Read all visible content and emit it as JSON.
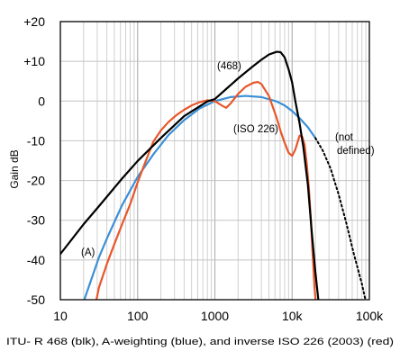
{
  "chart_data": {
    "type": "line",
    "ylabel": "Gain dB",
    "x_scale": "log",
    "xlim": [
      10,
      100000
    ],
    "ylim": [
      -50,
      20
    ],
    "grid": true,
    "x_ticks": [
      {
        "value": 10,
        "label": "10"
      },
      {
        "value": 100,
        "label": "100"
      },
      {
        "value": 1000,
        "label": "1000"
      },
      {
        "value": 10000,
        "label": "10k"
      },
      {
        "value": 100000,
        "label": "100k"
      }
    ],
    "y_ticks": [
      {
        "value": 20,
        "label": "+20"
      },
      {
        "value": 10,
        "label": "+10"
      },
      {
        "value": 0,
        "label": "0"
      },
      {
        "value": -10,
        "label": "-10"
      },
      {
        "value": -20,
        "label": "-20"
      },
      {
        "value": -30,
        "label": "-30"
      },
      {
        "value": -40,
        "label": "-40"
      },
      {
        "value": -50,
        "label": "-50"
      }
    ],
    "series": [
      {
        "key": "itu468",
        "color": "#000000",
        "points": [
          [
            10,
            -38.5
          ],
          [
            20,
            -31
          ],
          [
            31.5,
            -26.5
          ],
          [
            63,
            -19.5
          ],
          [
            100,
            -15.1
          ],
          [
            200,
            -9.3
          ],
          [
            400,
            -3.8
          ],
          [
            800,
            -0.1
          ],
          [
            1000,
            0.5
          ],
          [
            2000,
            5.7
          ],
          [
            3000,
            8.5
          ],
          [
            4000,
            10.4
          ],
          [
            5000,
            11.7
          ],
          [
            6300,
            12.4
          ],
          [
            7100,
            12.3
          ],
          [
            8000,
            11.0
          ],
          [
            9000,
            8.0
          ],
          [
            10000,
            4.7
          ],
          [
            11000,
            0.0
          ],
          [
            12500,
            -5.6
          ],
          [
            14000,
            -11.7
          ],
          [
            16000,
            -21.1
          ],
          [
            18000,
            -33.2
          ],
          [
            20000,
            -43.0
          ],
          [
            22400,
            -52
          ]
        ]
      },
      {
        "key": "a_weighting",
        "color": "#3b8fd6",
        "points": [
          [
            18,
            -52
          ],
          [
            20,
            -50.5
          ],
          [
            31.5,
            -39.4
          ],
          [
            40,
            -34.6
          ],
          [
            63,
            -26.2
          ],
          [
            100,
            -19.1
          ],
          [
            160,
            -13.4
          ],
          [
            250,
            -8.6
          ],
          [
            400,
            -4.8
          ],
          [
            630,
            -1.9
          ],
          [
            1000,
            0
          ],
          [
            1600,
            1.0
          ],
          [
            2500,
            1.3
          ],
          [
            4000,
            1.0
          ],
          [
            6300,
            -0.1
          ],
          [
            8000,
            -1.1
          ],
          [
            10000,
            -2.5
          ],
          [
            12500,
            -4.3
          ],
          [
            16000,
            -6.6
          ],
          [
            20000,
            -9.3
          ]
        ]
      },
      {
        "key": "a_weighting_extrapolated",
        "color": "#000000",
        "dashed": true,
        "points": [
          [
            20000,
            -9.3
          ],
          [
            25000,
            -12.5
          ],
          [
            31500,
            -17.0
          ],
          [
            40000,
            -23.5
          ],
          [
            50000,
            -30.5
          ],
          [
            63000,
            -38.5
          ],
          [
            80000,
            -46.0
          ],
          [
            90000,
            -50.5
          ]
        ]
      },
      {
        "key": "inverse_iso226",
        "color": "#e8562a",
        "points": [
          [
            28,
            -52
          ],
          [
            31.5,
            -47
          ],
          [
            40,
            -41
          ],
          [
            50,
            -36
          ],
          [
            63,
            -31
          ],
          [
            80,
            -26
          ],
          [
            100,
            -20.5
          ],
          [
            125,
            -15.5
          ],
          [
            160,
            -10.2
          ],
          [
            200,
            -7.4
          ],
          [
            250,
            -5.3
          ],
          [
            315,
            -3.6
          ],
          [
            400,
            -2.2
          ],
          [
            500,
            -1.1
          ],
          [
            630,
            -0.3
          ],
          [
            800,
            0.2
          ],
          [
            1000,
            0
          ],
          [
            1250,
            -1.2
          ],
          [
            1400,
            -1.7
          ],
          [
            1600,
            -0.6
          ],
          [
            2000,
            1.8
          ],
          [
            2500,
            3.6
          ],
          [
            3150,
            4.6
          ],
          [
            3600,
            4.8
          ],
          [
            4000,
            4.3
          ],
          [
            5000,
            1.3
          ],
          [
            6300,
            -4.2
          ],
          [
            7100,
            -7.6
          ],
          [
            8000,
            -10.5
          ],
          [
            9000,
            -13.0
          ],
          [
            10000,
            -13.8
          ],
          [
            11000,
            -12.2
          ],
          [
            12500,
            -8.7
          ],
          [
            13500,
            -9.0
          ],
          [
            14500,
            -11.0
          ],
          [
            15500,
            -16.0
          ],
          [
            16500,
            -22.0
          ],
          [
            17500,
            -30.0
          ],
          [
            18500,
            -39.0
          ],
          [
            19500,
            -47.0
          ],
          [
            20500,
            -52
          ]
        ]
      }
    ],
    "annotations": {
      "itu468": "(468)",
      "a": "(A)",
      "iso226": "(ISO 226)",
      "not_defined_1": "(not",
      "not_defined_2": "defined)"
    },
    "caption": "ITU- R 468 (blk), A-weighting (blue), and inverse ISO 226 (2003) (red)"
  }
}
